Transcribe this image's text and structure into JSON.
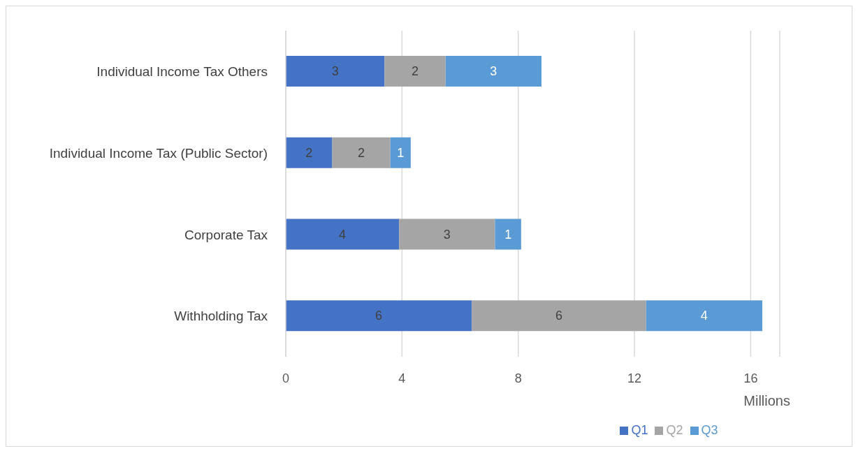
{
  "chart_data": {
    "type": "bar",
    "orientation": "horizontal",
    "stacked": true,
    "categories": [
      "Individual Income Tax Others",
      "Individual Income Tax (Public Sector)",
      "Corporate Tax",
      "Withholding Tax"
    ],
    "series": [
      {
        "name": "Q1",
        "color": "#4472c4",
        "values": [
          3.4,
          1.6,
          3.9,
          6.4
        ],
        "value_labels": [
          "3",
          "2",
          "4",
          "6"
        ]
      },
      {
        "name": "Q2",
        "color": "#a5a5a5",
        "values": [
          2.1,
          2.0,
          3.3,
          6.0
        ],
        "value_labels": [
          "2",
          "2",
          "3",
          "6"
        ]
      },
      {
        "name": "Q3",
        "color": "#5b9bd5",
        "values": [
          3.3,
          0.7,
          0.9,
          4.0
        ],
        "value_labels": [
          "3",
          "1",
          "1",
          "4"
        ]
      }
    ],
    "xlabel": "Millions",
    "xlim": [
      0,
      17
    ],
    "xticks": [
      0,
      4,
      8,
      12,
      16
    ],
    "grid": "x",
    "legend": "bottom"
  }
}
